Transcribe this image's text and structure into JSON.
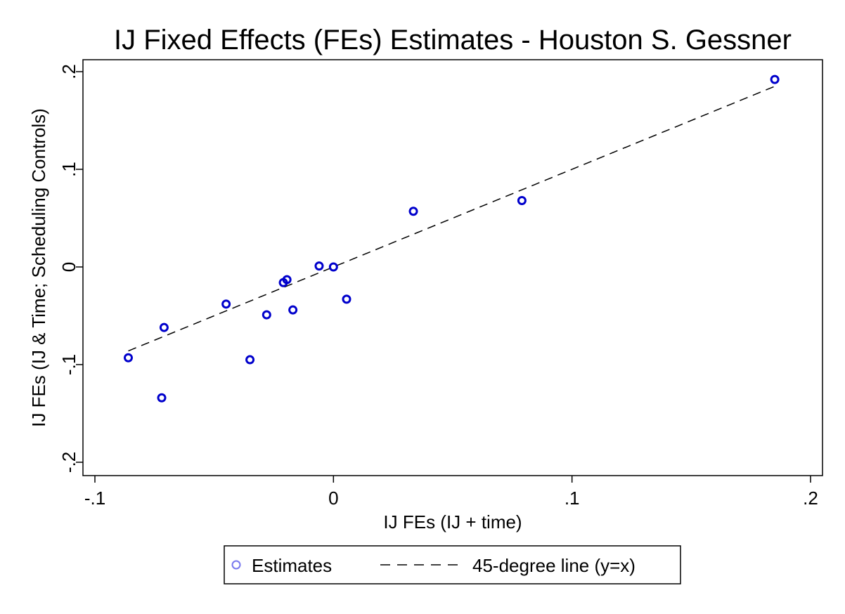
{
  "chart_data": {
    "type": "scatter",
    "title": "IJ Fixed Effects (FEs) Estimates - Houston S. Gessner",
    "xlabel": "IJ FEs (IJ + time)",
    "ylabel": "IJ FEs (IJ & Time; Scheduling Controls)",
    "xlim": [
      -0.1,
      0.2
    ],
    "ylim": [
      -0.2,
      0.2
    ],
    "x_ticks": [
      -0.1,
      0,
      0.1,
      0.2
    ],
    "x_tick_labels": [
      "-.1",
      "0",
      ".1",
      ".2"
    ],
    "y_ticks": [
      -0.2,
      -0.1,
      0,
      0.1,
      0.2
    ],
    "y_tick_labels": [
      "-.2",
      "-.1",
      "0",
      ".1",
      ".2"
    ],
    "grid": false,
    "legend_position": "bottom",
    "series": [
      {
        "name": "Estimates",
        "kind": "scatter",
        "color": "#0000cc",
        "marker": "hollow-circle",
        "points": [
          {
            "x": -0.086,
            "y": -0.093
          },
          {
            "x": -0.072,
            "y": -0.134
          },
          {
            "x": -0.071,
            "y": -0.062
          },
          {
            "x": -0.045,
            "y": -0.038
          },
          {
            "x": -0.035,
            "y": -0.095
          },
          {
            "x": -0.028,
            "y": -0.049
          },
          {
            "x": -0.021,
            "y": -0.016
          },
          {
            "x": -0.0195,
            "y": -0.013
          },
          {
            "x": -0.017,
            "y": -0.044
          },
          {
            "x": -0.006,
            "y": 0.001
          },
          {
            "x": 0.0,
            "y": 0.0
          },
          {
            "x": 0.0055,
            "y": -0.033
          },
          {
            "x": 0.0335,
            "y": 0.057
          },
          {
            "x": 0.079,
            "y": 0.068
          },
          {
            "x": 0.185,
            "y": 0.192
          }
        ]
      },
      {
        "name": "45-degree line (y=x)",
        "kind": "line",
        "color": "#000000",
        "dash": "dashed",
        "points": [
          {
            "x": -0.086,
            "y": -0.086
          },
          {
            "x": 0.185,
            "y": 0.185
          }
        ]
      }
    ]
  },
  "legend": {
    "items": [
      {
        "label": "Estimates"
      },
      {
        "label": "45-degree line (y=x)"
      }
    ]
  }
}
